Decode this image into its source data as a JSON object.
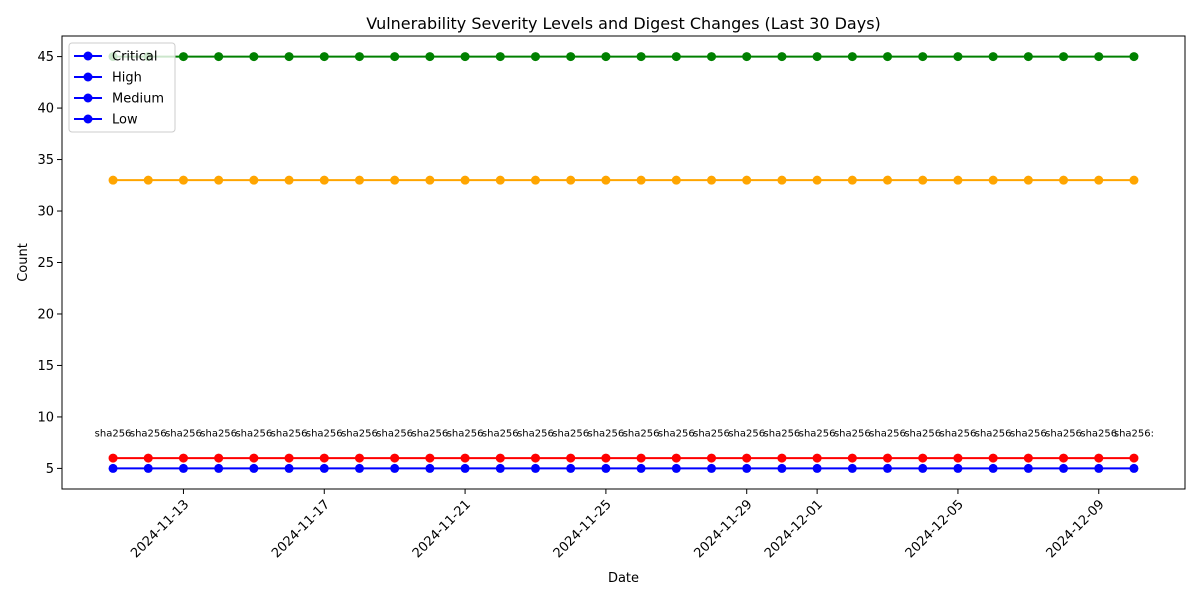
{
  "chart_data": {
    "type": "line",
    "title": "Vulnerability Severity Levels and Digest Changes (Last 30 Days)",
    "xlabel": "Date",
    "ylabel": "Count",
    "x": [
      "2024-11-11",
      "2024-11-12",
      "2024-11-13",
      "2024-11-14",
      "2024-11-15",
      "2024-11-16",
      "2024-11-17",
      "2024-11-18",
      "2024-11-19",
      "2024-11-20",
      "2024-11-21",
      "2024-11-22",
      "2024-11-23",
      "2024-11-24",
      "2024-11-25",
      "2024-11-26",
      "2024-11-27",
      "2024-11-28",
      "2024-11-29",
      "2024-11-30",
      "2024-12-01",
      "2024-12-02",
      "2024-12-03",
      "2024-12-04",
      "2024-12-05",
      "2024-12-06",
      "2024-12-07",
      "2024-12-08",
      "2024-12-09",
      "2024-12-10"
    ],
    "x_ticks": [
      "2024-11-13",
      "2024-11-17",
      "2024-11-21",
      "2024-11-25",
      "2024-11-29",
      "2024-12-01",
      "2024-12-05",
      "2024-12-09"
    ],
    "y_ticks": [
      5,
      10,
      15,
      20,
      25,
      30,
      35,
      40,
      45
    ],
    "ylim": [
      3.0,
      47.0
    ],
    "series": [
      {
        "name": "Critical",
        "legend_color": "#0000ff",
        "line_color": "#ff0000",
        "values": [
          6,
          6,
          6,
          6,
          6,
          6,
          6,
          6,
          6,
          6,
          6,
          6,
          6,
          6,
          6,
          6,
          6,
          6,
          6,
          6,
          6,
          6,
          6,
          6,
          6,
          6,
          6,
          6,
          6,
          6
        ]
      },
      {
        "name": "High",
        "legend_color": "#0000ff",
        "line_color": "#ffa500",
        "values": [
          33,
          33,
          33,
          33,
          33,
          33,
          33,
          33,
          33,
          33,
          33,
          33,
          33,
          33,
          33,
          33,
          33,
          33,
          33,
          33,
          33,
          33,
          33,
          33,
          33,
          33,
          33,
          33,
          33,
          33
        ]
      },
      {
        "name": "Medium",
        "legend_color": "#0000ff",
        "line_color": "#008000",
        "values": [
          45,
          45,
          45,
          45,
          45,
          45,
          45,
          45,
          45,
          45,
          45,
          45,
          45,
          45,
          45,
          45,
          45,
          45,
          45,
          45,
          45,
          45,
          45,
          45,
          45,
          45,
          45,
          45,
          45,
          45
        ]
      },
      {
        "name": "Low",
        "legend_color": "#0000ff",
        "line_color": "#0000ff",
        "values": [
          5,
          5,
          5,
          5,
          5,
          5,
          5,
          5,
          5,
          5,
          5,
          5,
          5,
          5,
          5,
          5,
          5,
          5,
          5,
          5,
          5,
          5,
          5,
          5,
          5,
          5,
          5,
          5,
          5,
          5
        ]
      }
    ],
    "annotations": [
      "sha256",
      "sha256",
      "sha256",
      "sha256",
      "sha256",
      "sha256",
      "sha256",
      "sha256",
      "sha256",
      "sha256",
      "sha256",
      "sha256",
      "sha256",
      "sha256",
      "sha256",
      "sha256",
      "sha256",
      "sha256",
      "sha256",
      "sha256",
      "sha256",
      "sha256",
      "sha256",
      "sha256",
      "sha256",
      "sha256",
      "sha256",
      "sha256",
      "sha256",
      "sha256:"
    ],
    "annotation_y": 8.5,
    "legend_position": "top-left",
    "grid": false
  }
}
